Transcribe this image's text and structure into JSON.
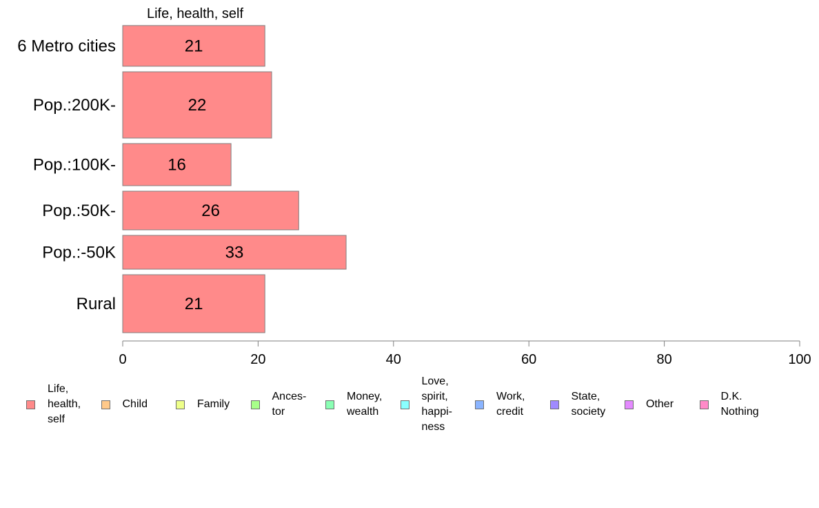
{
  "chart_data": {
    "type": "bar",
    "orientation": "horizontal",
    "column_title": "Life, health, self",
    "categories": [
      "6 Metro cities",
      "Pop.:200K-",
      "Pop.:100K-",
      "Pop.:50K-",
      "Pop.:-50K",
      "Rural"
    ],
    "values": [
      21,
      22,
      16,
      26,
      33,
      21
    ],
    "xlim": [
      0,
      100
    ],
    "xticks": [
      0,
      20,
      40,
      60,
      80,
      100
    ],
    "grid": false,
    "bar_color": "#ff8a8a",
    "bar_edge_color": "#7f7f7f",
    "legend_position": "bottom",
    "legend": [
      {
        "label": "Life,\nhealth,\nself",
        "color": "#ff8a8a"
      },
      {
        "label": "Child",
        "color": "#ffc98a"
      },
      {
        "label": "Family",
        "color": "#eeff8a"
      },
      {
        "label": "Ances-\ntor",
        "color": "#a8ff8a"
      },
      {
        "label": "Money,\nwealth",
        "color": "#8affb4"
      },
      {
        "label": "Love,\nspirit,\nhappi-\nness",
        "color": "#8affff"
      },
      {
        "label": "Work,\ncredit",
        "color": "#8ab4ff"
      },
      {
        "label": "State,\nsociety",
        "color": "#a08aff"
      },
      {
        "label": "Other",
        "color": "#e48aff"
      },
      {
        "label": "D.K.\nNothing",
        "color": "#ff8ac8"
      }
    ]
  }
}
